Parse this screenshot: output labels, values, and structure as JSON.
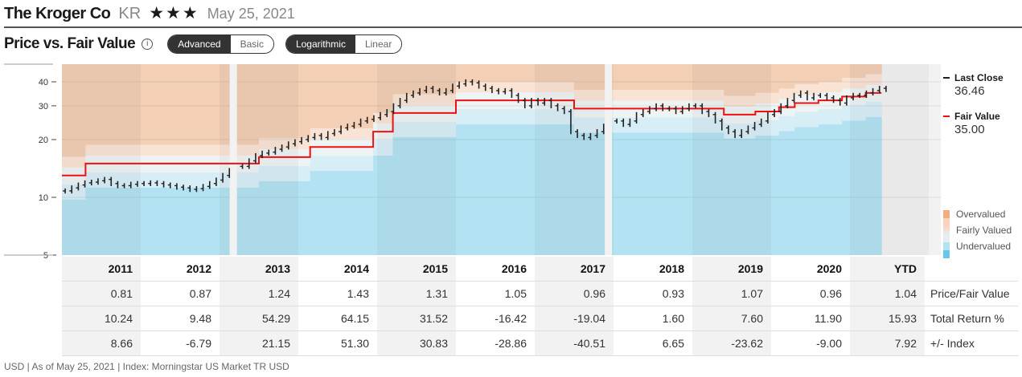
{
  "header": {
    "company": "The Kroger Co",
    "ticker": "KR",
    "stars": "★★★",
    "date": "May 25, 2021"
  },
  "section": {
    "title": "Price vs. Fair Value",
    "info_icon": "i",
    "view_toggle": [
      "Advanced",
      "Basic"
    ],
    "scale_toggle": [
      "Logarithmic",
      "Linear"
    ]
  },
  "legend": {
    "last_close_label": "Last Close",
    "last_close": "36.46",
    "fair_value_label": "Fair Value",
    "fair_value": "35.00",
    "bands": [
      "Overvalued",
      "Fairly Valued",
      "Undervalued"
    ]
  },
  "colors": {
    "price": "#222222",
    "fair_value": "#ee1111",
    "overvalued": "#f4ad7c",
    "fairly": "#e4eeef",
    "undervalued": "#69c7ea"
  },
  "chart_data": {
    "type": "line",
    "yscale": "log",
    "ylim": [
      5,
      49
    ],
    "yticks": [
      "40",
      "30",
      "20",
      "10",
      "5"
    ],
    "ytick_values": [
      40,
      30,
      20,
      10,
      5
    ],
    "xlim": [
      2011,
      2022
    ],
    "fair_value": [
      [
        2011,
        13
      ],
      [
        2011.3,
        15
      ],
      [
        2013.5,
        16.2
      ],
      [
        2014.15,
        18.3
      ],
      [
        2014.95,
        22
      ],
      [
        2015.2,
        27.5
      ],
      [
        2016.0,
        32
      ],
      [
        2017.5,
        29
      ],
      [
        2019.4,
        27
      ],
      [
        2019.8,
        28
      ],
      [
        2020.1,
        29.5
      ],
      [
        2020.3,
        31
      ],
      [
        2020.6,
        32
      ],
      [
        2020.9,
        33.5
      ],
      [
        2021.2,
        35
      ],
      [
        2021.4,
        35
      ]
    ],
    "price_monthly_start": 2011,
    "price": [
      10.8,
      11.2,
      11.6,
      11.9,
      12,
      12.2,
      12.4,
      11.8,
      11.5,
      11.5,
      11.7,
      11.8,
      11.8,
      11.9,
      11.8,
      11.6,
      11.5,
      11.3,
      11.2,
      11.0,
      11.1,
      11.4,
      11.8,
      12.3,
      13,
      13.8,
      null,
      14.5,
      15.5,
      16.5,
      17,
      17.2,
      17.8,
      18.3,
      19,
      19.5,
      20,
      20.5,
      21,
      20.5,
      21.5,
      22,
      23,
      23.5,
      24,
      25,
      25.5,
      26,
      27,
      28,
      30,
      32,
      34,
      35,
      36,
      37,
      36,
      35,
      36,
      38,
      39,
      40,
      39.5,
      38,
      37,
      36,
      35.5,
      36,
      34,
      32,
      30,
      32,
      31,
      32,
      30,
      29,
      28,
      22,
      21,
      20.5,
      21,
      22,
      23.5,
      null,
      25,
      24,
      25,
      27,
      28,
      29,
      30,
      29,
      29,
      28,
      29,
      30,
      30,
      28,
      27,
      25,
      23,
      22,
      21,
      22,
      23,
      24,
      25,
      27,
      28,
      30,
      32,
      34,
      35,
      33,
      34,
      34,
      33,
      32,
      31,
      33,
      34,
      34,
      35,
      36,
      37,
      36.5
    ],
    "gaps": [
      2013.17,
      2017.93
    ]
  },
  "table": {
    "years": [
      "2011",
      "2012",
      "2013",
      "2014",
      "2015",
      "2016",
      "2017",
      "2018",
      "2019",
      "2020",
      "YTD"
    ],
    "rows": [
      {
        "label": "Price/Fair Value",
        "values": [
          "0.81",
          "0.87",
          "1.24",
          "1.43",
          "1.31",
          "1.05",
          "0.96",
          "0.93",
          "1.07",
          "0.96",
          "1.04"
        ]
      },
      {
        "label": "Total Return %",
        "values": [
          "10.24",
          "9.48",
          "54.29",
          "64.15",
          "31.52",
          "-16.42",
          "-19.04",
          "1.60",
          "7.60",
          "11.90",
          "15.93"
        ]
      },
      {
        "label": "+/- Index",
        "values": [
          "8.66",
          "-6.79",
          "21.15",
          "51.30",
          "30.83",
          "-28.86",
          "-40.51",
          "6.65",
          "-23.62",
          "-9.00",
          "7.92"
        ]
      }
    ]
  },
  "footer": "USD | As of May 25, 2021 | Index: Morningstar US Market TR USD"
}
